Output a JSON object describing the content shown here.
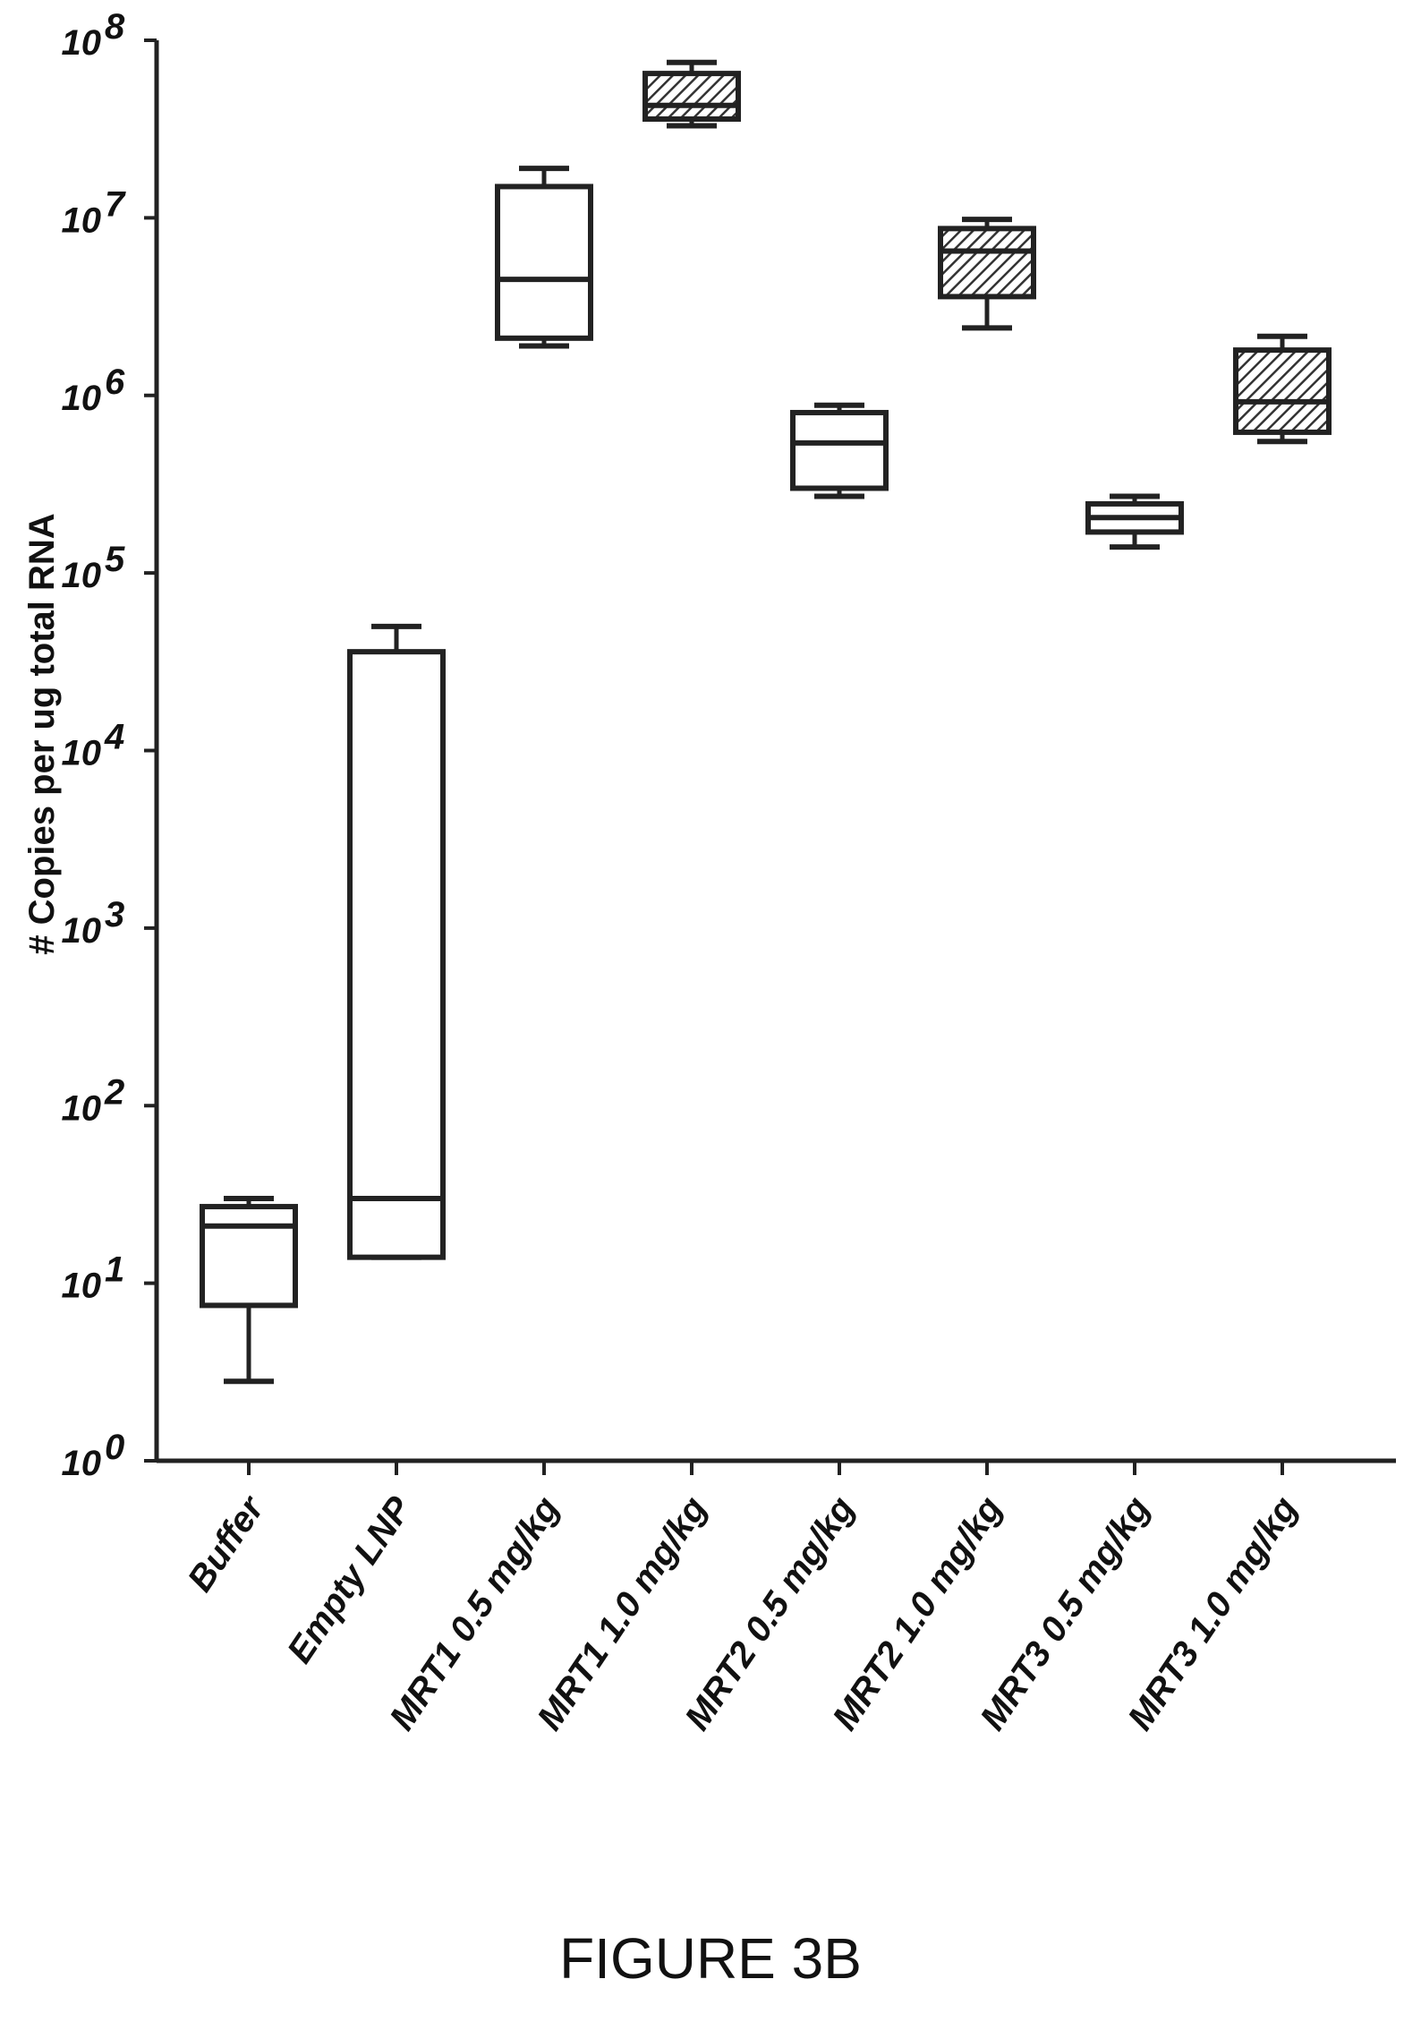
{
  "chart_data": {
    "type": "box",
    "title": "",
    "xlabel": "",
    "ylabel": "# Copies per ug total RNA",
    "yscale": "log",
    "ylim": [
      1,
      100000000
    ],
    "yticks": [
      {
        "value": 1,
        "base": "10",
        "exp": "0"
      },
      {
        "value": 10,
        "base": "10",
        "exp": "1"
      },
      {
        "value": 100,
        "base": "10",
        "exp": "2"
      },
      {
        "value": 1000,
        "base": "10",
        "exp": "3"
      },
      {
        "value": 10000,
        "base": "10",
        "exp": "4"
      },
      {
        "value": 100000,
        "base": "10",
        "exp": "5"
      },
      {
        "value": 1000000,
        "base": "10",
        "exp": "6"
      },
      {
        "value": 10000000,
        "base": "10",
        "exp": "7"
      },
      {
        "value": 100000000,
        "base": "10",
        "exp": "8"
      }
    ],
    "categories": [
      "Buffer",
      "Empty LNP",
      "MRT1 0.5 mg/kg",
      "MRT1 1.0 mg/kg",
      "MRT2 0.5 mg/kg",
      "MRT2 1.0 mg/kg",
      "MRT3 0.5 mg/kg",
      "MRT3 1.0 mg/kg"
    ],
    "boxes": [
      {
        "min": 2.8,
        "q1": 7.5,
        "median": 21,
        "q3": 27,
        "max": 30,
        "fill": "white"
      },
      {
        "min": 14,
        "q1": 14,
        "median": 30,
        "q3": 36000,
        "max": 50000,
        "fill": "white"
      },
      {
        "min": 1900000,
        "q1": 2100000,
        "median": 4500000,
        "q3": 15000000,
        "max": 19000000,
        "fill": "white"
      },
      {
        "min": 33000000,
        "q1": 36000000,
        "median": 43000000,
        "q3": 65000000,
        "max": 75000000,
        "fill": "hatched"
      },
      {
        "min": 270000,
        "q1": 300000,
        "median": 540000,
        "q3": 800000,
        "max": 880000,
        "fill": "white"
      },
      {
        "min": 2400000,
        "q1": 3600000,
        "median": 6500000,
        "q3": 8700000,
        "max": 9800000,
        "fill": "hatched"
      },
      {
        "min": 140000,
        "q1": 170000,
        "median": 205000,
        "q3": 245000,
        "max": 270000,
        "fill": "white"
      },
      {
        "min": 550000,
        "q1": 620000,
        "median": 920000,
        "q3": 1800000,
        "max": 2150000,
        "fill": "hatched"
      }
    ]
  },
  "figure": {
    "caption": "FIGURE 3B"
  }
}
